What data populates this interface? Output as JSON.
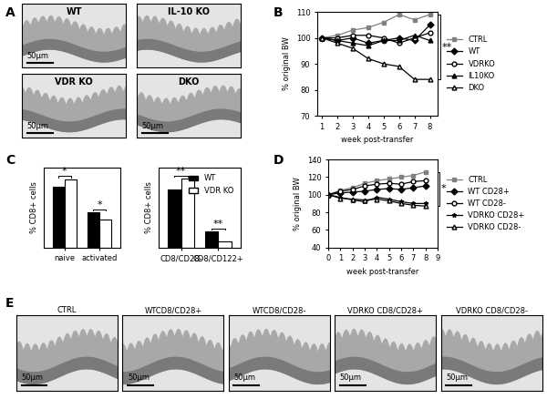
{
  "micrographs": [
    {
      "panel": "A",
      "images": [
        {
          "label": "WT",
          "scale_bar": "50μm"
        },
        {
          "label": "IL-10 KO"
        },
        {
          "label": "VDR KO",
          "scale_bar": "50μm"
        },
        {
          "label": "DKO",
          "scale_bar": "50μm"
        }
      ]
    },
    {
      "panel": "E",
      "images": [
        {
          "label": "CTRL",
          "scale_bar": "50μm"
        },
        {
          "label": "WTCD8/CD28+",
          "scale_bar": "50μm"
        },
        {
          "label": "WTCD8/CD28-",
          "scale_bar": "50μm"
        },
        {
          "label": "VDRKO CD8/CD28+",
          "scale_bar": "50μm"
        },
        {
          "label": "VDRKO CD8/CD28-",
          "scale_bar": "50μm"
        }
      ]
    }
  ],
  "chart_data": [
    {
      "panel": "B",
      "type": "line",
      "x": [
        1,
        2,
        3,
        4,
        5,
        6,
        7,
        8
      ],
      "xlim": [
        0.7,
        8.5
      ],
      "xticks": [
        1,
        2,
        3,
        4,
        5,
        6,
        7,
        8
      ],
      "ylim": [
        70,
        110
      ],
      "yticks": [
        70,
        80,
        90,
        100,
        110
      ],
      "x_label": "week post-transfer",
      "y_label": "% original BW",
      "legend": "right",
      "series": [
        {
          "name": "CTRL",
          "color": "#808080",
          "marker": "square",
          "values": [
            100,
            101,
            103,
            104,
            106,
            109,
            107,
            109
          ]
        },
        {
          "name": "WT",
          "color": "#000000",
          "marker": "diamond",
          "values": [
            100,
            99,
            100,
            98,
            99,
            100,
            99,
            105
          ]
        },
        {
          "name": "VDRKO",
          "color": "#000000",
          "marker": "open circle",
          "values": [
            100,
            100,
            101,
            101,
            100,
            98,
            100,
            102
          ]
        },
        {
          "name": "IL10KO",
          "color": "#000000",
          "marker": "triangle",
          "values": [
            100,
            99,
            98,
            97,
            99,
            99,
            101,
            99
          ]
        },
        {
          "name": "DKO",
          "color": "#000000",
          "marker": "open triangle",
          "values": [
            100,
            98,
            96,
            92,
            90,
            89,
            84,
            84
          ]
        }
      ],
      "annotations": [
        {
          "text": "**",
          "between": [
            "CTRL",
            "DKO"
          ]
        }
      ]
    },
    {
      "panel": "C",
      "type": "bar",
      "categories": [
        "naive",
        "activated"
      ],
      "ylim": [
        0,
        75
      ],
      "tick_labels": "x",
      "y_label": "% CD8+ cells",
      "series": [
        {
          "name": "WT",
          "color": "#000000",
          "values": [
            57,
            33
          ]
        },
        {
          "name": "VDR KO",
          "color": "#ffffff",
          "values": [
            64,
            26
          ]
        }
      ],
      "significance": [
        "*",
        "*"
      ]
    },
    {
      "panel": "C",
      "type": "bar",
      "categories": [
        "CD8/CD28-",
        "CD8/CD122+"
      ],
      "ylim": [
        0,
        50
      ],
      "tick_labels": "x",
      "y_label": "% CD8+ cells",
      "legend": "upper right",
      "series": [
        {
          "name": "WT",
          "color": "#000000",
          "values": [
            36,
            10
          ]
        },
        {
          "name": "VDR KO",
          "color": "#ffffff",
          "values": [
            43,
            4
          ]
        }
      ],
      "significance": [
        "**",
        "**"
      ]
    },
    {
      "panel": "D",
      "type": "line",
      "x": [
        0,
        1,
        2,
        3,
        4,
        5,
        6,
        7,
        8
      ],
      "xlim": [
        0,
        9
      ],
      "xticks": [
        0,
        1,
        2,
        3,
        4,
        5,
        6,
        7,
        8,
        9
      ],
      "ylim": [
        40,
        140
      ],
      "yticks": [
        40,
        60,
        80,
        100,
        120,
        140
      ],
      "x_label": "week post-transfer",
      "y_label": "% original BW",
      "legend": "right",
      "series": [
        {
          "name": "CTRL",
          "color": "#808080",
          "marker": "square",
          "values": [
            100,
            105,
            108,
            113,
            116,
            118,
            120,
            122,
            126
          ]
        },
        {
          "name": "WT CD28+",
          "color": "#000000",
          "marker": "diamond",
          "values": [
            100,
            102,
            103,
            104,
            106,
            107,
            106,
            108,
            110
          ]
        },
        {
          "name": "WT CD28-",
          "color": "#000000",
          "marker": "open circle",
          "values": [
            100,
            104,
            106,
            110,
            112,
            113,
            112,
            115,
            116
          ]
        },
        {
          "name": "VDRKO CD28+",
          "color": "#000000",
          "marker": "star",
          "values": [
            100,
            97,
            94,
            92,
            97,
            95,
            92,
            90,
            90
          ]
        },
        {
          "name": "VDRKO CD28-",
          "color": "#000000",
          "marker": "open triangle",
          "values": [
            100,
            96,
            95,
            94,
            95,
            93,
            90,
            88,
            87
          ]
        }
      ],
      "annotations": [
        {
          "text": "*",
          "between": [
            "CTRL",
            "VDRKO CD28-"
          ]
        }
      ]
    }
  ]
}
